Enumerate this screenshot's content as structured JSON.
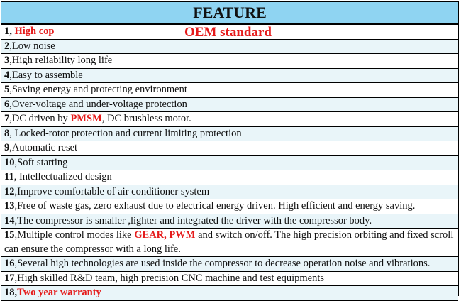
{
  "header": {
    "title": "FEATURE"
  },
  "badge": "OEM standard",
  "rows": [
    {
      "num": "1",
      "sep": ", ",
      "parts": [
        {
          "t": "High cop",
          "hl": true
        }
      ]
    },
    {
      "num": "2",
      "sep": ",",
      "parts": [
        {
          "t": "Low noise"
        }
      ]
    },
    {
      "num": "3",
      "sep": ",",
      "parts": [
        {
          "t": "High reliability long life"
        }
      ]
    },
    {
      "num": "4",
      "sep": ",",
      "parts": [
        {
          "t": "Easy to assemble"
        }
      ]
    },
    {
      "num": "5",
      "sep": ",",
      "parts": [
        {
          "t": "Saving energy and protecting environment"
        }
      ]
    },
    {
      "num": "6",
      "sep": ",",
      "parts": [
        {
          "t": "Over-voltage and under-voltage protection"
        }
      ]
    },
    {
      "num": "7",
      "sep": ",",
      "parts": [
        {
          "t": "DC driven by "
        },
        {
          "t": "PMSM",
          "hl": true
        },
        {
          "t": ", DC brushless motor."
        }
      ]
    },
    {
      "num": "8",
      "sep": ", ",
      "parts": [
        {
          "t": "Locked-rotor protection and current limiting protection",
          "ghost": true
        }
      ]
    },
    {
      "num": "9",
      "sep": ",",
      "parts": [
        {
          "t": "Automatic reset",
          "ghost": true
        }
      ]
    },
    {
      "num": "10",
      "sep": ",",
      "parts": [
        {
          "t": "Soft starting"
        }
      ]
    },
    {
      "num": "11",
      "sep": ", ",
      "parts": [
        {
          "t": "Intellectualized design"
        }
      ]
    },
    {
      "num": "12",
      "sep": ",",
      "parts": [
        {
          "t": "Improve comfortable of air conditioner system"
        }
      ]
    },
    {
      "num": "13",
      "sep": ",",
      "parts": [
        {
          "t": "Free of waste gas, zero exhaust due to electrical energy driven. High efficient and energy saving."
        }
      ]
    },
    {
      "num": "14",
      "sep": ",",
      "parts": [
        {
          "t": "The compressor is smaller ,lighter and integrated the driver with the compressor body."
        }
      ]
    },
    {
      "num": "15",
      "sep": ",",
      "tall": true,
      "parts": [
        {
          "t": "Multiple control modes like "
        },
        {
          "t": "GEAR, PWM",
          "hl": true
        },
        {
          "t": " and switch on/off. The high precision orbiting and fixed scroll can ensure the compressor with a long life."
        }
      ]
    },
    {
      "num": "16",
      "sep": ",",
      "parts": [
        {
          "t": "Several high technologies are used inside the compressor to decrease operation noise and vibrations."
        }
      ]
    },
    {
      "num": "17",
      "sep": ",",
      "parts": [
        {
          "t": "High skilled R&D team, high precision CNC machine and test equipments"
        }
      ]
    },
    {
      "num": "18",
      "sep": ",",
      "parts": [
        {
          "t": "Two year warranty",
          "hl": true
        }
      ]
    }
  ],
  "colors": {
    "header_bg": "#8fd4f2",
    "highlight": "#e51b1b"
  }
}
